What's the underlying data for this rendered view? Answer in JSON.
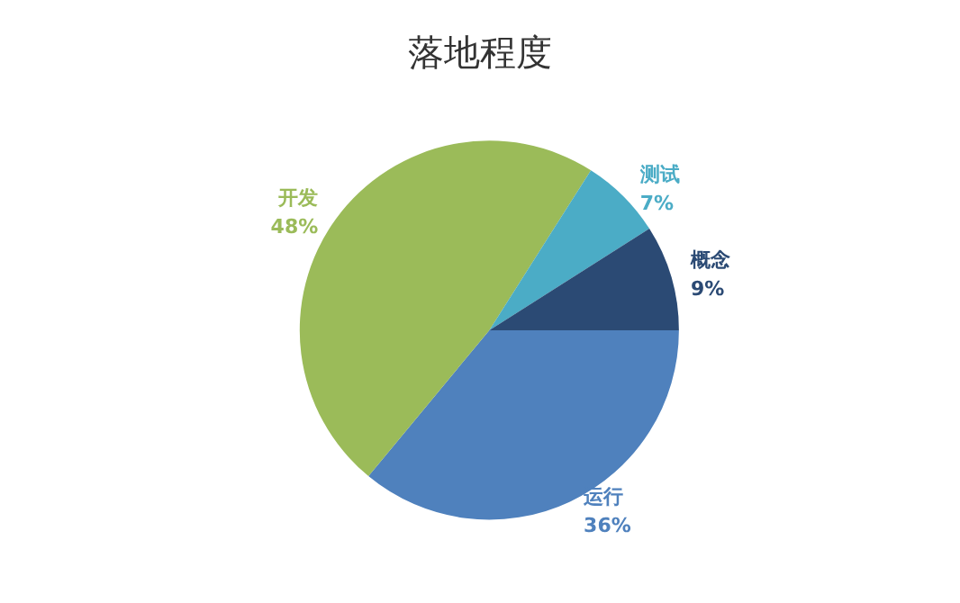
{
  "chart_data": {
    "type": "pie",
    "title": "落地程度",
    "categories": [
      "运行",
      "开发",
      "测试",
      "概念"
    ],
    "values": [
      36,
      48,
      7,
      9
    ],
    "value_labels": [
      "36%",
      "48%",
      "7%",
      "9%"
    ],
    "colors": [
      "#4f81bd",
      "#9bbb59",
      "#4bacc6",
      "#2b4a74"
    ],
    "legend": false
  }
}
